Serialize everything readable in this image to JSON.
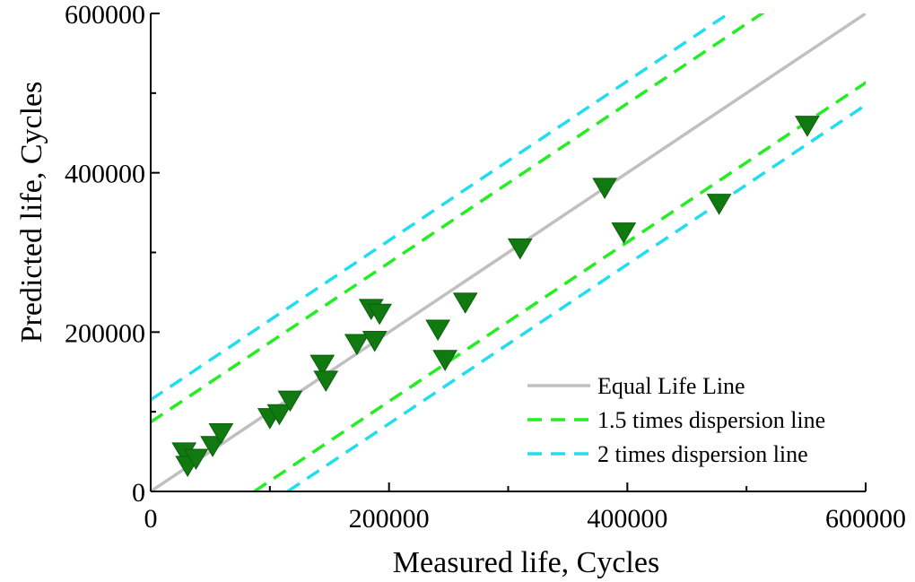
{
  "chart_data": {
    "type": "scatter",
    "xlabel": "Measured life, Cycles",
    "ylabel": "Predicted life, Cycles",
    "xlim": [
      0,
      600000
    ],
    "ylim": [
      0,
      600000
    ],
    "xticks": [
      "0",
      "200000",
      "400000",
      "600000"
    ],
    "yticks": [
      "0",
      "200000",
      "400000",
      "600000"
    ],
    "grid": false,
    "legend_position": "bottom-right",
    "reference_lines": [
      {
        "name": "Equal Life Line",
        "factor": 1,
        "style": "solid",
        "color": "#c0c0c0"
      },
      {
        "name": "1.5 times dispersion line",
        "factor": 1.5,
        "style": "dashed",
        "color": "#22ee22"
      },
      {
        "name": "2 times dispersion line",
        "factor": 2,
        "style": "dashed",
        "color": "#22ddee"
      }
    ],
    "marker_color": "#107a10",
    "marker": "triangle-down",
    "points": [
      {
        "x": 28000,
        "y": 50000
      },
      {
        "x": 31000,
        "y": 33000
      },
      {
        "x": 38000,
        "y": 42000
      },
      {
        "x": 52000,
        "y": 58000
      },
      {
        "x": 59000,
        "y": 74000
      },
      {
        "x": 100000,
        "y": 93000
      },
      {
        "x": 108000,
        "y": 98000
      },
      {
        "x": 117000,
        "y": 115000
      },
      {
        "x": 144000,
        "y": 160000
      },
      {
        "x": 147000,
        "y": 140000
      },
      {
        "x": 173000,
        "y": 186000
      },
      {
        "x": 185000,
        "y": 230000
      },
      {
        "x": 188000,
        "y": 190000
      },
      {
        "x": 192000,
        "y": 224000
      },
      {
        "x": 241000,
        "y": 204000
      },
      {
        "x": 247000,
        "y": 166000
      },
      {
        "x": 264000,
        "y": 238000
      },
      {
        "x": 310000,
        "y": 306000
      },
      {
        "x": 381000,
        "y": 382000
      },
      {
        "x": 397000,
        "y": 326000
      },
      {
        "x": 477000,
        "y": 362000
      },
      {
        "x": 551000,
        "y": 460000
      }
    ]
  }
}
